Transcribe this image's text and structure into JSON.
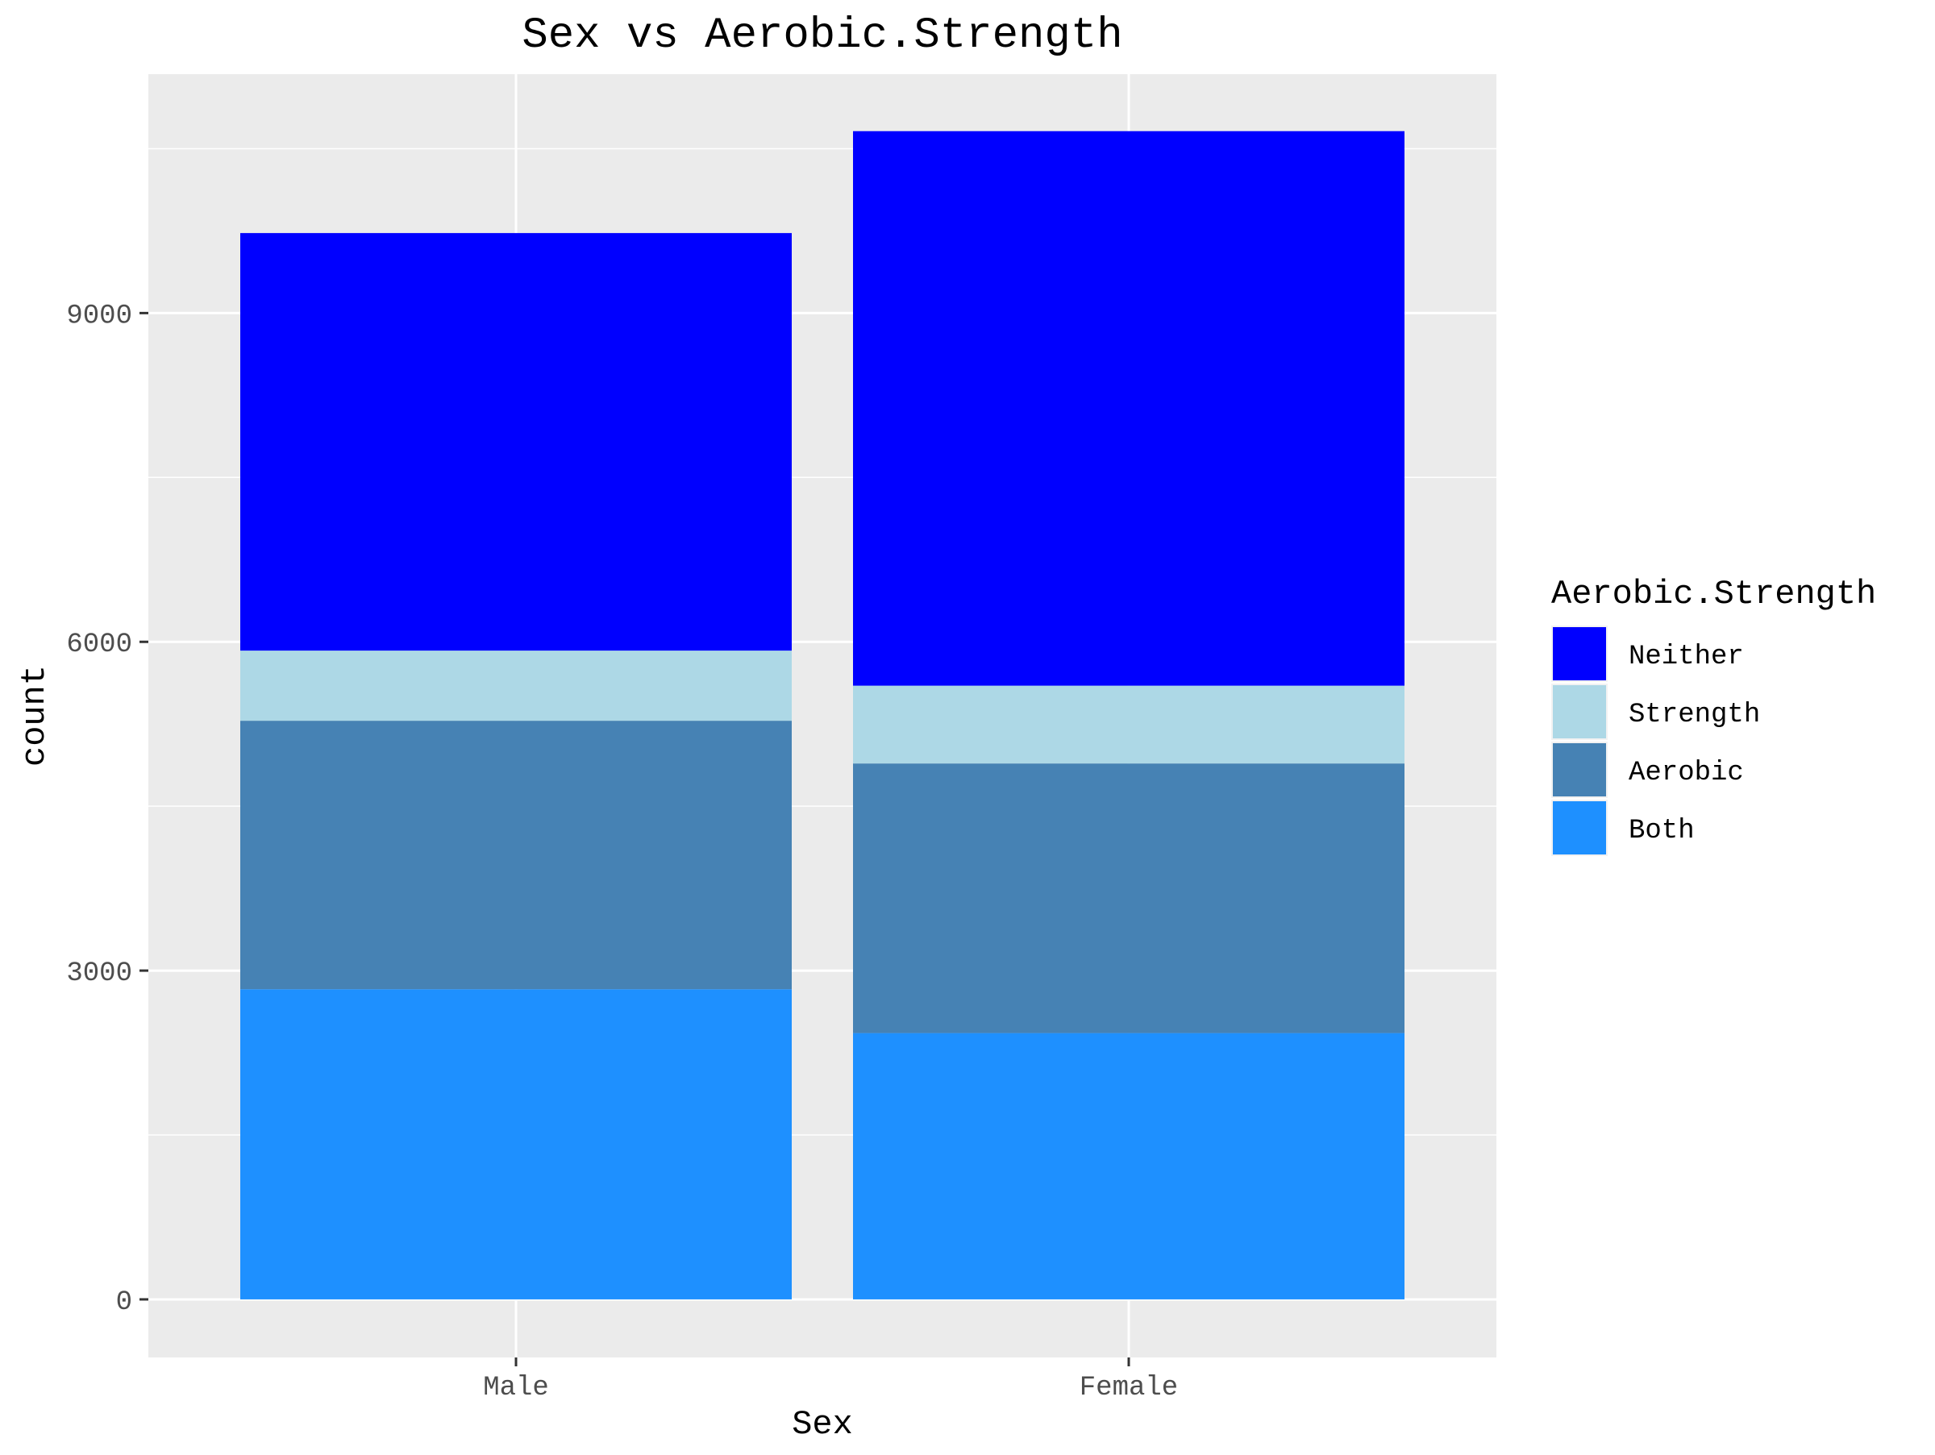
{
  "chart_data": {
    "type": "bar",
    "stacked": true,
    "title": "Sex vs Aerobic.Strength",
    "xlabel": "Sex",
    "ylabel": "count",
    "categories": [
      "Male",
      "Female"
    ],
    "ylim": [
      -530,
      11180
    ],
    "y_ticks": [
      0,
      3000,
      6000,
      9000
    ],
    "grid": true,
    "legend": {
      "title": "Aerobic.Strength",
      "position": "right",
      "entries": [
        "Neither",
        "Strength",
        "Aerobic",
        "Both"
      ]
    },
    "series": [
      {
        "name": "Both",
        "color": "#1E90FF",
        "values": [
          2830,
          2430
        ]
      },
      {
        "name": "Aerobic",
        "color": "#4682B4",
        "values": [
          2450,
          2460
        ]
      },
      {
        "name": "Strength",
        "color": "#ADD8E6",
        "values": [
          640,
          710
        ]
      },
      {
        "name": "Neither",
        "color": "#0000FF",
        "values": [
          3810,
          5060
        ]
      }
    ]
  }
}
